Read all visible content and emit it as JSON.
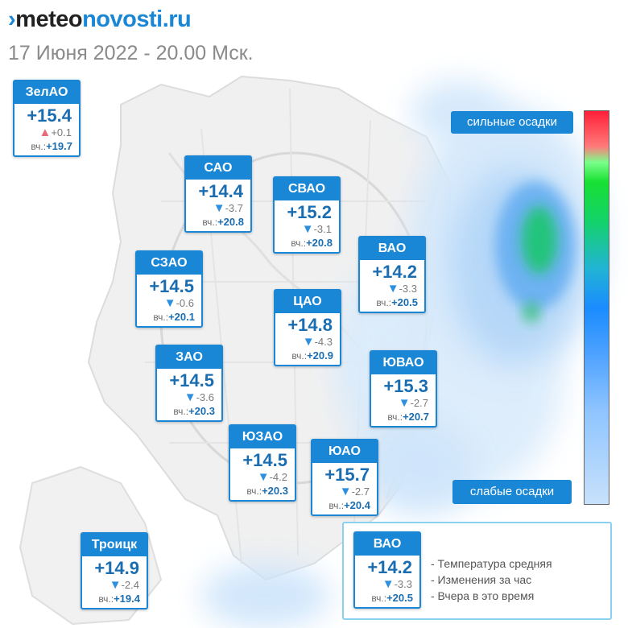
{
  "header": {
    "logo_mark": "›",
    "logo_part1": "meteo",
    "logo_part2": "novosti.ru",
    "subtitle": "17 Июня 2022 - 20.00 Мск."
  },
  "colors": {
    "brand": "#1a87d6",
    "temp_text": "#1a6db0",
    "down_arrow": "#2d8fe0",
    "up_arrow": "#e76b7a"
  },
  "districts": [
    {
      "name": "ЗелАО",
      "temp": "+15.4",
      "arrow": "▲",
      "direction": "up",
      "change": "+0.1",
      "yday_label": "вч.:",
      "yday": "+19.7"
    },
    {
      "name": "САО",
      "temp": "+14.4",
      "arrow": "▼",
      "direction": "down",
      "change": "-3.7",
      "yday_label": "вч.:",
      "yday": "+20.8"
    },
    {
      "name": "СВАО",
      "temp": "+15.2",
      "arrow": "▼",
      "direction": "down",
      "change": "-3.1",
      "yday_label": "вч.:",
      "yday": "+20.8"
    },
    {
      "name": "ВАО",
      "temp": "+14.2",
      "arrow": "▼",
      "direction": "down",
      "change": "-3.3",
      "yday_label": "вч.:",
      "yday": "+20.5"
    },
    {
      "name": "СЗАО",
      "temp": "+14.5",
      "arrow": "▼",
      "direction": "down",
      "change": "-0.6",
      "yday_label": "вч.:",
      "yday": "+20.1"
    },
    {
      "name": "ЦАО",
      "temp": "+14.8",
      "arrow": "▼",
      "direction": "down",
      "change": "-4.3",
      "yday_label": "вч.:",
      "yday": "+20.9"
    },
    {
      "name": "ЗАО",
      "temp": "+14.5",
      "arrow": "▼",
      "direction": "down",
      "change": "-3.6",
      "yday_label": "вч.:",
      "yday": "+20.3"
    },
    {
      "name": "ЮВАО",
      "temp": "+15.3",
      "arrow": "▼",
      "direction": "down",
      "change": "-2.7",
      "yday_label": "вч.:",
      "yday": "+20.7"
    },
    {
      "name": "ЮЗАО",
      "temp": "+14.5",
      "arrow": "▼",
      "direction": "down",
      "change": "-4.2",
      "yday_label": "вч.:",
      "yday": "+20.3"
    },
    {
      "name": "ЮАО",
      "temp": "+15.7",
      "arrow": "▼",
      "direction": "down",
      "change": "-2.7",
      "yday_label": "вч.:",
      "yday": "+20.4"
    },
    {
      "name": "Троицк",
      "temp": "+14.9",
      "arrow": "▼",
      "direction": "down",
      "change": "-2.4",
      "yday_label": "вч.:",
      "yday": "+19.4"
    }
  ],
  "precip_scale": {
    "top_label": "сильные осадки",
    "bottom_label": "слабые осадки"
  },
  "legend": {
    "sample": {
      "name": "ВАО",
      "temp": "+14.2",
      "arrow": "▼",
      "direction": "down",
      "change": "-3.3",
      "yday_label": "вч.:",
      "yday": "+20.5"
    },
    "items": [
      "- Температура средняя",
      "- Изменения за час",
      "- Вчера в это время"
    ]
  }
}
